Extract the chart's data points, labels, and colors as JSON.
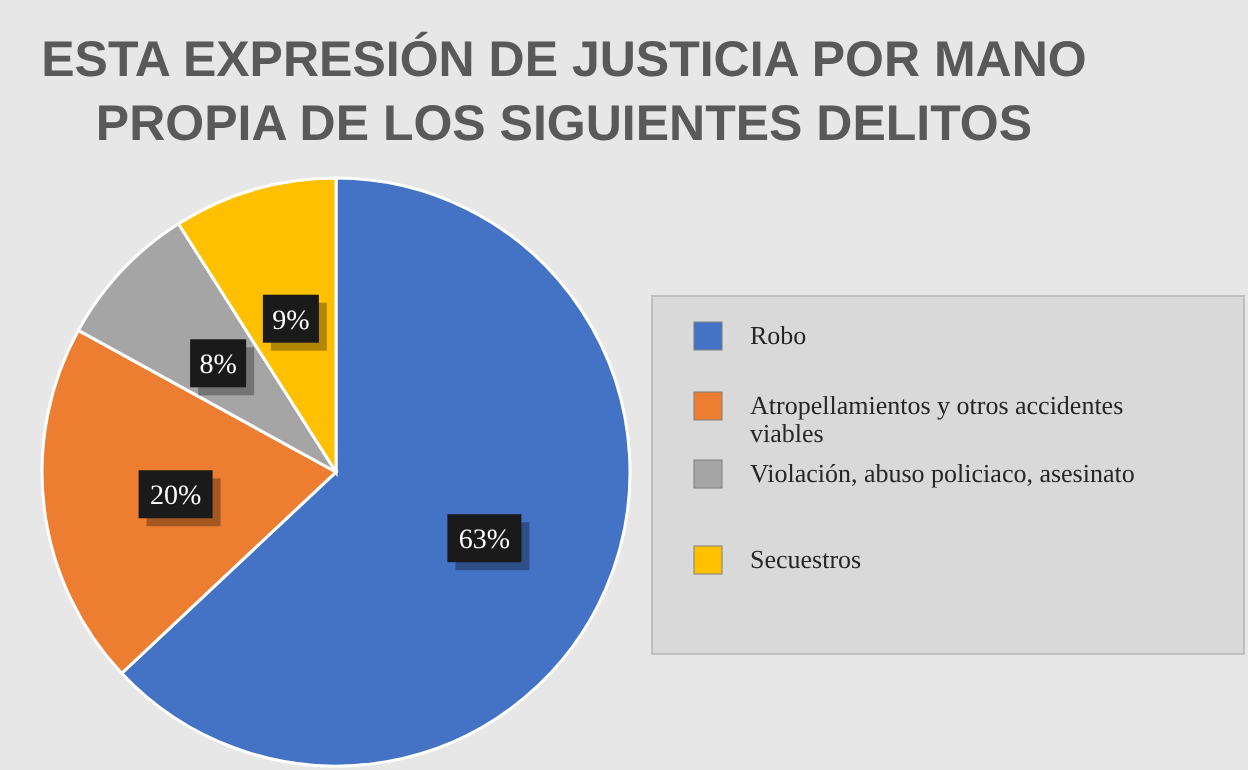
{
  "chart_data": {
    "type": "pie",
    "title": "ESTA EXPRESIÓN DE JUSTICIA POR MANO\nPROPIA DE LOS SIGUIENTES DELITOS",
    "categories": [
      "Robo",
      "Atropellamientos y otros accidentes viables",
      "Violación, abuso policiaco, asesinato",
      "Secuestros"
    ],
    "values": [
      63,
      20,
      8,
      9
    ],
    "colors": [
      "#4472c4",
      "#ed7d31",
      "#a5a5a5",
      "#ffc000"
    ],
    "value_labels": [
      "63%",
      "20%",
      "8%",
      "9%"
    ],
    "legend": "right"
  }
}
